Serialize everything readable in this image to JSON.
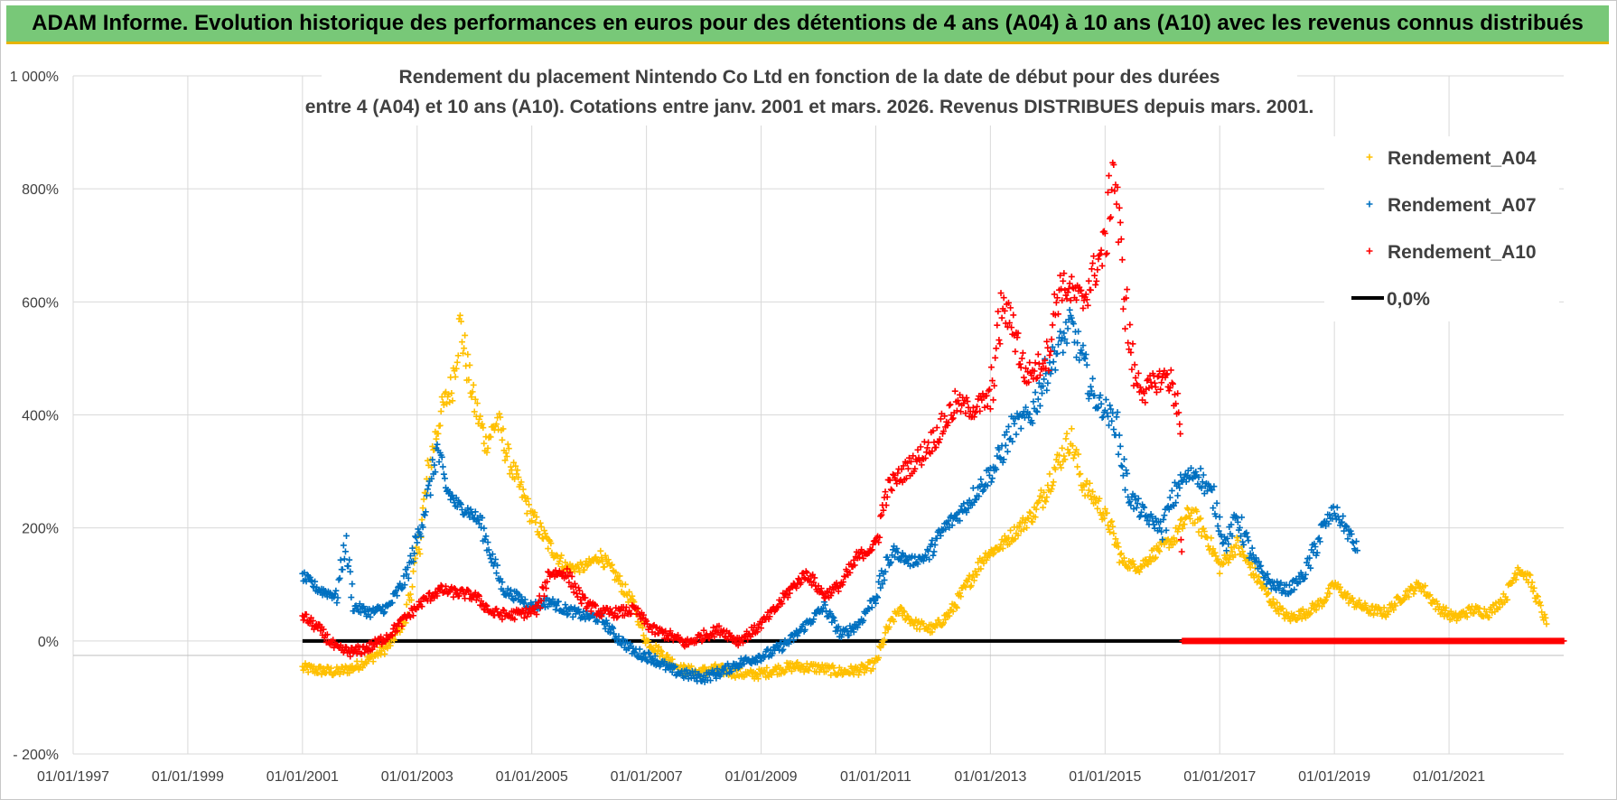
{
  "banner": {
    "title": "ADAM Informe. Evolution historique des performances en euros pour des détentions de 4 ans (A04) à 10 ans (A10) avec les revenus connus distribués"
  },
  "chart_data": {
    "type": "scatter",
    "title": "Rendement du placement Nintendo Co Ltd en fonction de la date de début pour des durées",
    "subtitle": "entre 4 (A04) et 10 ans (A10).  Cotations entre janv. 2001 et mars. 2026. Revenus DISTRIBUES depuis mars. 2001.",
    "xlabel": "",
    "ylabel": "",
    "x_range": [
      1997.0,
      2023.0
    ],
    "ylim": [
      -200,
      1000
    ],
    "y_ticks": [
      -200,
      0,
      200,
      400,
      600,
      800,
      1000
    ],
    "y_tick_labels": [
      "- 200%",
      "0%",
      "200%",
      "400%",
      "600%",
      "800%",
      "1 000%"
    ],
    "x_ticks": [
      1997,
      1999,
      2001,
      2003,
      2005,
      2007,
      2009,
      2011,
      2013,
      2015,
      2017,
      2019,
      2021
    ],
    "x_tick_labels": [
      "01/01/1997",
      "01/01/1999",
      "01/01/2001",
      "01/01/2003",
      "01/01/2005",
      "01/01/2007",
      "01/01/2009",
      "01/01/2011",
      "01/01/2013",
      "01/01/2015",
      "01/01/2017",
      "01/01/2019",
      "01/01/2021"
    ],
    "grid": true,
    "legend_position": "top-right",
    "series": [
      {
        "name": "Rendement_A04",
        "color": "#ffc000",
        "marker": "plus",
        "points": [
          [
            2001.0,
            -48
          ],
          [
            2001.3,
            -52
          ],
          [
            2001.6,
            -55
          ],
          [
            2001.9,
            -47
          ],
          [
            2002.2,
            -30
          ],
          [
            2002.5,
            -10
          ],
          [
            2002.8,
            40
          ],
          [
            2003.0,
            150
          ],
          [
            2003.2,
            300
          ],
          [
            2003.4,
            400
          ],
          [
            2003.6,
            450
          ],
          [
            2003.75,
            560
          ],
          [
            2003.9,
            470
          ],
          [
            2004.0,
            420
          ],
          [
            2004.2,
            350
          ],
          [
            2004.4,
            390
          ],
          [
            2004.6,
            320
          ],
          [
            2004.8,
            270
          ],
          [
            2005.0,
            220
          ],
          [
            2005.3,
            170
          ],
          [
            2005.6,
            130
          ],
          [
            2005.9,
            130
          ],
          [
            2006.2,
            150
          ],
          [
            2006.5,
            110
          ],
          [
            2006.8,
            60
          ],
          [
            2007.0,
            0
          ],
          [
            2007.3,
            -25
          ],
          [
            2007.6,
            -50
          ],
          [
            2007.9,
            -55
          ],
          [
            2008.2,
            -50
          ],
          [
            2008.5,
            -55
          ],
          [
            2008.8,
            -60
          ],
          [
            2009.0,
            -58
          ],
          [
            2009.3,
            -50
          ],
          [
            2009.6,
            -45
          ],
          [
            2010.0,
            -48
          ],
          [
            2010.4,
            -55
          ],
          [
            2010.8,
            -50
          ],
          [
            2011.0,
            -40
          ],
          [
            2011.2,
            20
          ],
          [
            2011.4,
            55
          ],
          [
            2011.7,
            30
          ],
          [
            2012.0,
            20
          ],
          [
            2012.3,
            50
          ],
          [
            2012.6,
            100
          ],
          [
            2012.9,
            150
          ],
          [
            2013.2,
            170
          ],
          [
            2013.5,
            200
          ],
          [
            2013.8,
            230
          ],
          [
            2014.1,
            300
          ],
          [
            2014.4,
            360
          ],
          [
            2014.6,
            280
          ],
          [
            2014.9,
            240
          ],
          [
            2015.1,
            200
          ],
          [
            2015.3,
            140
          ],
          [
            2015.6,
            130
          ],
          [
            2015.9,
            160
          ],
          [
            2016.2,
            180
          ],
          [
            2016.5,
            230
          ],
          [
            2016.8,
            180
          ],
          [
            2017.0,
            130
          ],
          [
            2017.3,
            170
          ],
          [
            2017.6,
            120
          ],
          [
            2017.9,
            70
          ],
          [
            2018.2,
            40
          ],
          [
            2018.5,
            50
          ],
          [
            2018.8,
            70
          ],
          [
            2019.0,
            100
          ],
          [
            2019.3,
            70
          ],
          [
            2019.6,
            55
          ],
          [
            2019.9,
            50
          ],
          [
            2020.2,
            80
          ],
          [
            2020.5,
            100
          ],
          [
            2020.8,
            60
          ],
          [
            2021.1,
            40
          ],
          [
            2021.4,
            55
          ],
          [
            2021.7,
            50
          ],
          [
            2022.0,
            80
          ],
          [
            2022.2,
            130
          ],
          [
            2022.4,
            110
          ],
          [
            2022.55,
            70
          ],
          [
            2022.7,
            30
          ]
        ]
      },
      {
        "name": "Rendement_A07",
        "color": "#0070c0",
        "marker": "plus",
        "points": [
          [
            2001.0,
            115
          ],
          [
            2001.3,
            90
          ],
          [
            2001.6,
            80
          ],
          [
            2001.75,
            175
          ],
          [
            2001.9,
            60
          ],
          [
            2002.2,
            50
          ],
          [
            2002.5,
            60
          ],
          [
            2002.8,
            110
          ],
          [
            2003.0,
            180
          ],
          [
            2003.2,
            260
          ],
          [
            2003.35,
            340
          ],
          [
            2003.5,
            270
          ],
          [
            2003.7,
            240
          ],
          [
            2003.9,
            230
          ],
          [
            2004.1,
            210
          ],
          [
            2004.3,
            150
          ],
          [
            2004.5,
            90
          ],
          [
            2004.8,
            75
          ],
          [
            2005.0,
            60
          ],
          [
            2005.3,
            70
          ],
          [
            2005.6,
            55
          ],
          [
            2005.9,
            45
          ],
          [
            2006.2,
            40
          ],
          [
            2006.5,
            5
          ],
          [
            2006.8,
            -20
          ],
          [
            2007.1,
            -30
          ],
          [
            2007.4,
            -50
          ],
          [
            2007.7,
            -60
          ],
          [
            2008.0,
            -65
          ],
          [
            2008.3,
            -55
          ],
          [
            2008.6,
            -40
          ],
          [
            2008.9,
            -30
          ],
          [
            2009.2,
            -20
          ],
          [
            2009.5,
            0
          ],
          [
            2009.8,
            30
          ],
          [
            2010.1,
            60
          ],
          [
            2010.4,
            10
          ],
          [
            2010.7,
            30
          ],
          [
            2011.0,
            80
          ],
          [
            2011.3,
            160
          ],
          [
            2011.6,
            140
          ],
          [
            2011.9,
            150
          ],
          [
            2012.2,
            200
          ],
          [
            2012.5,
            230
          ],
          [
            2012.8,
            270
          ],
          [
            2013.1,
            310
          ],
          [
            2013.4,
            380
          ],
          [
            2013.7,
            400
          ],
          [
            2014.0,
            480
          ],
          [
            2014.2,
            520
          ],
          [
            2014.4,
            560
          ],
          [
            2014.6,
            500
          ],
          [
            2014.8,
            430
          ],
          [
            2015.0,
            410
          ],
          [
            2015.2,
            380
          ],
          [
            2015.4,
            260
          ],
          [
            2015.7,
            220
          ],
          [
            2016.0,
            200
          ],
          [
            2016.3,
            280
          ],
          [
            2016.6,
            300
          ],
          [
            2016.9,
            250
          ],
          [
            2017.1,
            170
          ],
          [
            2017.3,
            220
          ],
          [
            2017.6,
            140
          ],
          [
            2017.9,
            100
          ],
          [
            2018.2,
            90
          ],
          [
            2018.5,
            120
          ],
          [
            2018.8,
            200
          ],
          [
            2019.0,
            230
          ],
          [
            2019.2,
            200
          ],
          [
            2019.4,
            160
          ]
        ]
      },
      {
        "name": "Rendement_A10",
        "color": "#ff0000",
        "marker": "plus",
        "points": [
          [
            2001.0,
            45
          ],
          [
            2001.3,
            20
          ],
          [
            2001.6,
            -15
          ],
          [
            2001.9,
            -20
          ],
          [
            2002.2,
            -10
          ],
          [
            2002.5,
            10
          ],
          [
            2002.8,
            40
          ],
          [
            2003.1,
            70
          ],
          [
            2003.4,
            90
          ],
          [
            2003.7,
            85
          ],
          [
            2004.0,
            80
          ],
          [
            2004.3,
            50
          ],
          [
            2004.6,
            45
          ],
          [
            2004.9,
            50
          ],
          [
            2005.1,
            55
          ],
          [
            2005.3,
            120
          ],
          [
            2005.6,
            120
          ],
          [
            2005.9,
            70
          ],
          [
            2006.2,
            50
          ],
          [
            2006.5,
            50
          ],
          [
            2006.8,
            55
          ],
          [
            2007.1,
            20
          ],
          [
            2007.4,
            10
          ],
          [
            2007.7,
            -5
          ],
          [
            2008.0,
            10
          ],
          [
            2008.3,
            20
          ],
          [
            2008.6,
            0
          ],
          [
            2008.9,
            20
          ],
          [
            2009.2,
            50
          ],
          [
            2009.5,
            90
          ],
          [
            2009.8,
            120
          ],
          [
            2010.1,
            80
          ],
          [
            2010.4,
            100
          ],
          [
            2010.7,
            150
          ],
          [
            2011.0,
            170
          ],
          [
            2011.2,
            270
          ],
          [
            2011.5,
            300
          ],
          [
            2011.8,
            330
          ],
          [
            2012.1,
            370
          ],
          [
            2012.4,
            420
          ],
          [
            2012.7,
            410
          ],
          [
            2013.0,
            430
          ],
          [
            2013.2,
            590
          ],
          [
            2013.4,
            560
          ],
          [
            2013.6,
            470
          ],
          [
            2013.8,
            480
          ],
          [
            2014.0,
            510
          ],
          [
            2014.2,
            630
          ],
          [
            2014.4,
            620
          ],
          [
            2014.6,
            600
          ],
          [
            2014.8,
            650
          ],
          [
            2015.0,
            700
          ],
          [
            2015.15,
            850
          ],
          [
            2015.3,
            650
          ],
          [
            2015.5,
            470
          ],
          [
            2015.7,
            440
          ],
          [
            2015.9,
            460
          ],
          [
            2016.1,
            470
          ],
          [
            2016.3,
            410
          ],
          [
            2016.35,
            0
          ],
          [
            2016.8,
            0
          ],
          [
            2017.5,
            0
          ],
          [
            2018.5,
            0
          ],
          [
            2019.5,
            0
          ],
          [
            2020.5,
            0
          ],
          [
            2021.5,
            0
          ],
          [
            2022.5,
            0
          ],
          [
            2023.0,
            0
          ]
        ]
      },
      {
        "name": "0,0%",
        "color": "#000000",
        "marker": "line",
        "points": [
          [
            2001.0,
            0
          ],
          [
            2016.5,
            0
          ]
        ]
      }
    ]
  }
}
